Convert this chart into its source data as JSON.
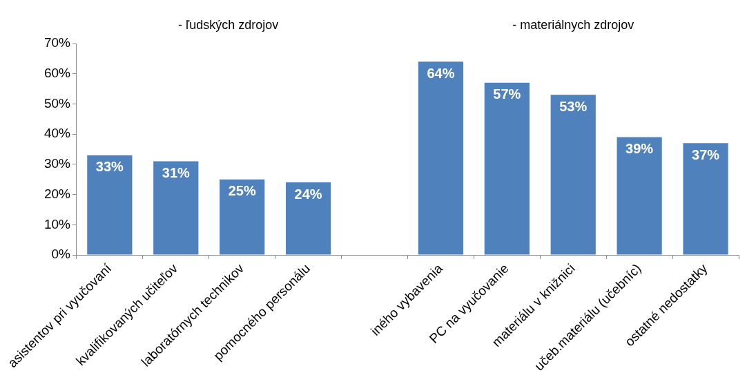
{
  "chart_data": {
    "type": "bar",
    "annotations": [
      "- ľudských zdrojov",
      "- materiálnych zdrojov"
    ],
    "categories": [
      "asistentov pri vyučovaní",
      "kvalifikovaných učiteľov",
      "laboratórnych technikov",
      "pomocného personálu",
      null,
      "iného vybavenia",
      "PC na vyučovanie",
      "materiálu v knižnici",
      "učeb.materiálu (učebníc)",
      "ostatné nedostatky"
    ],
    "values": [
      33,
      31,
      25,
      24,
      null,
      64,
      57,
      53,
      39,
      37
    ],
    "value_labels": [
      "33%",
      "31%",
      "25%",
      "24%",
      null,
      "64%",
      "57%",
      "53%",
      "39%",
      "37%"
    ],
    "color": "#4f81bd",
    "ylim": [
      0,
      70
    ],
    "yticks": [
      {
        "value": 0,
        "label": "0%"
      },
      {
        "value": 10,
        "label": "10%"
      },
      {
        "value": 20,
        "label": "20%"
      },
      {
        "value": 30,
        "label": "30%"
      },
      {
        "value": 40,
        "label": "40%"
      },
      {
        "value": 50,
        "label": "50%"
      },
      {
        "value": 60,
        "label": "60%"
      },
      {
        "value": 70,
        "label": "70%"
      }
    ],
    "grid": false,
    "legend": false
  }
}
